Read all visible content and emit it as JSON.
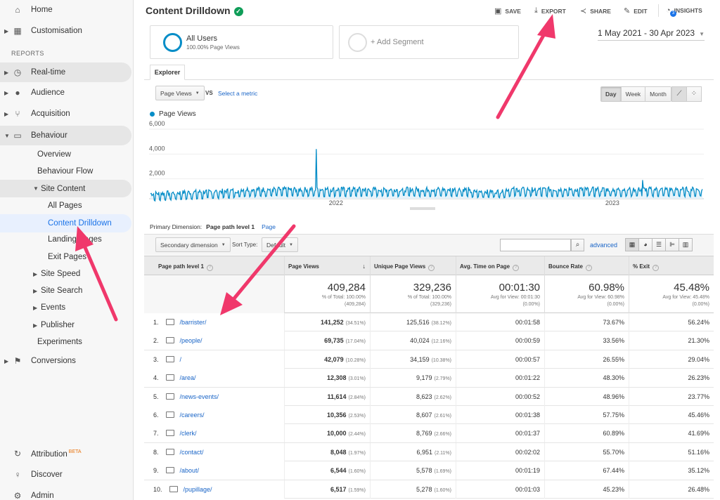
{
  "sidebar": {
    "home": "Home",
    "customisation": "Customisation",
    "reports_heading": "REPORTS",
    "realtime": "Real-time",
    "audience": "Audience",
    "acquisition": "Acquisition",
    "behaviour": "Behaviour",
    "overview": "Overview",
    "behaviour_flow": "Behaviour Flow",
    "site_content": "Site Content",
    "all_pages": "All Pages",
    "content_drilldown": "Content Drilldown",
    "landing_pages": "Landing Pages",
    "exit_pages": "Exit Pages",
    "site_speed": "Site Speed",
    "site_search": "Site Search",
    "events": "Events",
    "publisher": "Publisher",
    "experiments": "Experiments",
    "conversions": "Conversions",
    "attribution": "Attribution",
    "attribution_badge": "BETA",
    "discover": "Discover",
    "admin": "Admin"
  },
  "header": {
    "title": "Content Drilldown",
    "save": "SAVE",
    "export": "EXPORT",
    "share": "SHARE",
    "edit": "EDIT",
    "insights": "INSIGHTS",
    "insights_count": "3"
  },
  "segments": {
    "all_users": "All Users",
    "all_users_sub": "100.00% Page Views",
    "add_segment": "+ Add Segment"
  },
  "date_range": "1 May 2021 - 30 Apr 2023",
  "explorer": {
    "tab": "Explorer",
    "metric_select": "Page Views",
    "vs": "VS",
    "select_metric": "Select a metric",
    "granularity": [
      "Day",
      "Week",
      "Month"
    ],
    "active_granularity": "Day"
  },
  "chart_data": {
    "type": "line",
    "series": [
      {
        "name": "Page Views",
        "color": "#058dc7"
      }
    ],
    "y_ticks": [
      "6,000",
      "4,000",
      "2,000"
    ],
    "x_ticks": [
      "2022",
      "2023"
    ],
    "ylim": [
      0,
      6000
    ],
    "x_range": [
      "2021-05-01",
      "2023-04-30"
    ],
    "daily_baseline_approx": 800,
    "weekly_peak_approx": 1300,
    "spike": {
      "date": "2021-12-06",
      "value": 4400
    }
  },
  "primary_dimension": {
    "label": "Primary Dimension:",
    "current": "Page path level 1",
    "alt": "Page"
  },
  "table_toolbar": {
    "secondary_dimension": "Secondary dimension",
    "sort_type_label": "Sort Type:",
    "sort_type": "Default",
    "advanced": "advanced"
  },
  "table": {
    "columns": [
      "Page path level 1",
      "Page Views",
      "Unique Page Views",
      "Avg. Time on Page",
      "Bounce Rate",
      "% Exit"
    ],
    "totals": [
      {
        "value": "409,284",
        "sub1": "% of Total: 100.00%",
        "sub2": "(409,284)"
      },
      {
        "value": "329,236",
        "sub1": "% of Total: 100.00%",
        "sub2": "(329,236)"
      },
      {
        "value": "00:01:30",
        "sub1": "Avg for View: 00:01:30",
        "sub2": "(0.00%)"
      },
      {
        "value": "60.98%",
        "sub1": "Avg for View: 60.98%",
        "sub2": "(0.00%)"
      },
      {
        "value": "45.48%",
        "sub1": "Avg for View: 45.48%",
        "sub2": "(0.00%)"
      }
    ],
    "rows": [
      {
        "n": "1.",
        "path": "/barrister/",
        "pv": "141,252",
        "pv_pct": "(34.51%)",
        "upv": "125,516",
        "upv_pct": "(38.12%)",
        "time": "00:01:58",
        "bounce": "73.67%",
        "exit": "56.24%"
      },
      {
        "n": "2.",
        "path": "/people/",
        "pv": "69,735",
        "pv_pct": "(17.04%)",
        "upv": "40,024",
        "upv_pct": "(12.16%)",
        "time": "00:00:59",
        "bounce": "33.56%",
        "exit": "21.30%"
      },
      {
        "n": "3.",
        "path": "/",
        "pv": "42,079",
        "pv_pct": "(10.28%)",
        "upv": "34,159",
        "upv_pct": "(10.38%)",
        "time": "00:00:57",
        "bounce": "26.55%",
        "exit": "29.04%"
      },
      {
        "n": "4.",
        "path": "/area/",
        "pv": "12,308",
        "pv_pct": "(3.01%)",
        "upv": "9,179",
        "upv_pct": "(2.79%)",
        "time": "00:01:22",
        "bounce": "48.30%",
        "exit": "26.23%"
      },
      {
        "n": "5.",
        "path": "/news-events/",
        "pv": "11,614",
        "pv_pct": "(2.84%)",
        "upv": "8,623",
        "upv_pct": "(2.62%)",
        "time": "00:00:52",
        "bounce": "48.96%",
        "exit": "23.77%"
      },
      {
        "n": "6.",
        "path": "/careers/",
        "pv": "10,356",
        "pv_pct": "(2.53%)",
        "upv": "8,607",
        "upv_pct": "(2.61%)",
        "time": "00:01:38",
        "bounce": "57.75%",
        "exit": "45.46%"
      },
      {
        "n": "7.",
        "path": "/clerk/",
        "pv": "10,000",
        "pv_pct": "(2.44%)",
        "upv": "8,769",
        "upv_pct": "(2.66%)",
        "time": "00:01:37",
        "bounce": "60.89%",
        "exit": "41.69%"
      },
      {
        "n": "8.",
        "path": "/contact/",
        "pv": "8,048",
        "pv_pct": "(1.97%)",
        "upv": "6,951",
        "upv_pct": "(2.11%)",
        "time": "00:02:02",
        "bounce": "55.70%",
        "exit": "51.16%"
      },
      {
        "n": "9.",
        "path": "/about/",
        "pv": "6,544",
        "pv_pct": "(1.60%)",
        "upv": "5,578",
        "upv_pct": "(1.69%)",
        "time": "00:01:19",
        "bounce": "67.44%",
        "exit": "35.12%"
      },
      {
        "n": "10.",
        "path": "/pupillage/",
        "pv": "6,517",
        "pv_pct": "(1.59%)",
        "upv": "5,278",
        "upv_pct": "(1.60%)",
        "time": "00:01:03",
        "bounce": "45.23%",
        "exit": "26.48%"
      }
    ]
  },
  "colors": {
    "accent": "#058dc7",
    "link": "#1a65c7",
    "annotation_arrow": "#f0386b",
    "verified": "#0f9d58"
  }
}
